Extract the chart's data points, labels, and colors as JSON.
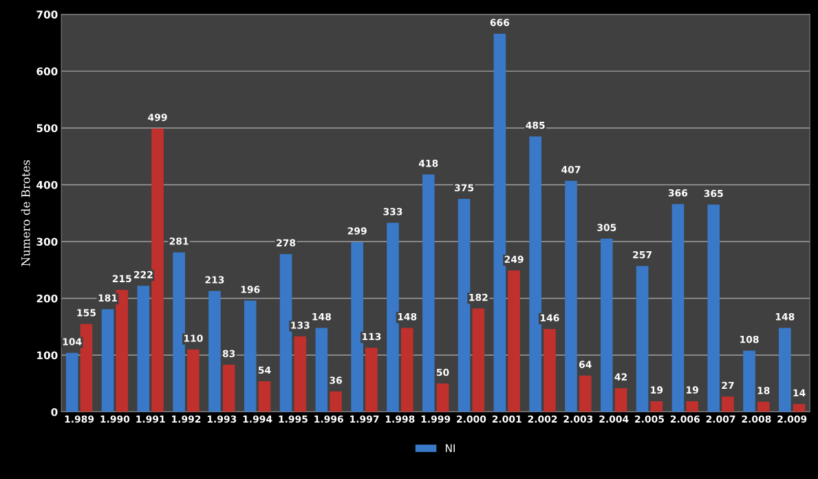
{
  "chart_data": {
    "type": "bar",
    "ylabel": "Numero de Brotes",
    "categories": [
      "1.989",
      "1.990",
      "1.991",
      "1.992",
      "1.993",
      "1.994",
      "1.995",
      "1.996",
      "1.997",
      "1.998",
      "1.999",
      "2.000",
      "2.001",
      "2.002",
      "2.003",
      "2.004",
      "2.005",
      "2.006",
      "2.007",
      "2.008",
      "2.009"
    ],
    "series": [
      {
        "name": "NI",
        "color": "#3a78c8",
        "values": [
          104,
          181,
          222,
          281,
          213,
          196,
          278,
          148,
          299,
          333,
          418,
          375,
          666,
          485,
          407,
          305,
          257,
          366,
          365,
          108,
          148
        ]
      },
      {
        "color": "#c0302c",
        "values": [
          155,
          215,
          499,
          110,
          83,
          54,
          133,
          36,
          113,
          148,
          50,
          182,
          249,
          146,
          64,
          42,
          19,
          19,
          27,
          18,
          14
        ]
      }
    ],
    "ylim": [
      0,
      700
    ],
    "yticks": [
      0,
      100,
      200,
      300,
      400,
      500,
      600,
      700
    ],
    "grid": "y",
    "legend": "bottom",
    "data_labels": true
  }
}
